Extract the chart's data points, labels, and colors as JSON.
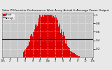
{
  "title": "Solar PV/Inverter Performance West Array Actual & Average Power Output",
  "bg_color": "#e8e8e8",
  "plot_bg_color": "#c8c8c8",
  "bar_color": "#dd0000",
  "avg_line_color": "#0000ff",
  "avg_line_value": 0.42,
  "grid_color": "#ffffff",
  "ylim": [
    0,
    1.05
  ],
  "num_bars": 144,
  "yticks": [
    0.2,
    0.4,
    0.6,
    0.8,
    1.0
  ],
  "ytick_labels": [
    "0.2",
    "0.4",
    "0.6",
    "0.8",
    "1"
  ],
  "xtick_labels": [
    "12a",
    "2",
    "4",
    "6",
    "8",
    "10",
    "12p",
    "2",
    "4",
    "6",
    "8",
    "10",
    "12a"
  ],
  "legend_actual": "Actual",
  "legend_avg": "Average"
}
